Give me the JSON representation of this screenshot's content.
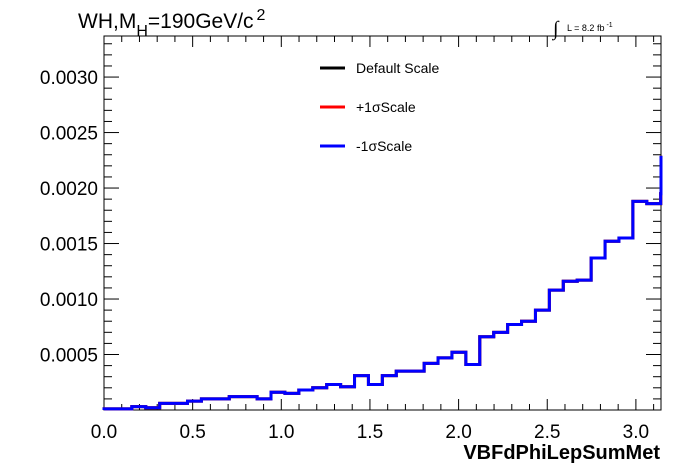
{
  "chart_data": {
    "type": "line",
    "title_parts": {
      "main": "WH,M",
      "sub": "H",
      "rest": "=190GeV/c",
      "sup": "2"
    },
    "lumi": {
      "integral": "∫",
      "text": "L = 8.2 fb",
      "sup": "-1"
    },
    "xlabel": "VBFdPhiLepSumMet",
    "xlim": [
      0,
      3.1416
    ],
    "ylim": [
      0,
      0.00337
    ],
    "x_ticks": [
      {
        "v": 0.0,
        "label": "0.0"
      },
      {
        "v": 0.5,
        "label": "0.5"
      },
      {
        "v": 1.0,
        "label": "1.0"
      },
      {
        "v": 1.5,
        "label": "1.5"
      },
      {
        "v": 2.0,
        "label": "2.0"
      },
      {
        "v": 2.5,
        "label": "2.5"
      },
      {
        "v": 3.0,
        "label": "3.0"
      }
    ],
    "y_ticks": [
      {
        "v": 0.0005,
        "label": "0.0005"
      },
      {
        "v": 0.001,
        "label": "0.0010"
      },
      {
        "v": 0.0015,
        "label": "0.0015"
      },
      {
        "v": 0.002,
        "label": "0.0020"
      },
      {
        "v": 0.0025,
        "label": "0.0025"
      },
      {
        "v": 0.003,
        "label": "0.0030"
      }
    ],
    "bin_width": 0.0785,
    "bin_values": [
      1e-05,
      1e-05,
      3e-05,
      2e-05,
      6e-05,
      6e-05,
      8e-05,
      0.0001,
      0.0001,
      0.00012,
      0.00012,
      0.0001,
      0.00016,
      0.00015,
      0.00018,
      0.0002,
      0.00023,
      0.00021,
      0.00031,
      0.00023,
      0.00031,
      0.00035,
      0.00035,
      0.00042,
      0.00047,
      0.00052,
      0.00041,
      0.00066,
      0.0007,
      0.00077,
      0.0008,
      0.0009,
      0.00108,
      0.00116,
      0.00117,
      0.00137,
      0.00152,
      0.00155,
      0.00188,
      0.00186,
      0.00195,
      0.00229,
      0.00208,
      0.00218,
      0.00207,
      0.00206
    ],
    "series": [
      {
        "name": "Default Scale",
        "color": "#000000"
      },
      {
        "name": "+1σScale",
        "color": "#ff0000"
      },
      {
        "name": "-1σScale",
        "color": "#0000ff"
      }
    ],
    "legend_position": "top-right",
    "grid": false
  }
}
